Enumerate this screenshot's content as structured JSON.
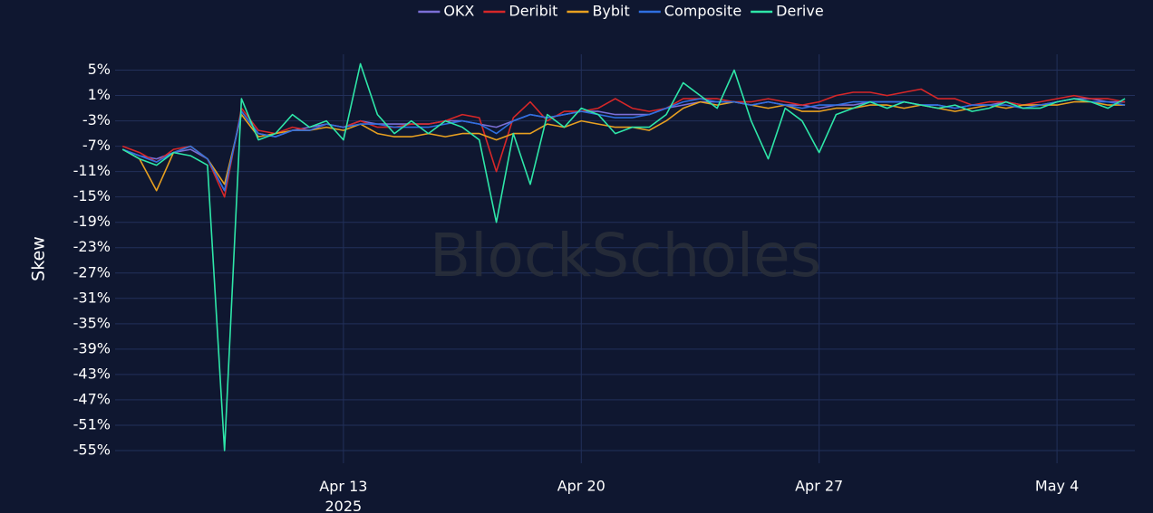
{
  "chart_data": {
    "type": "line",
    "y_label": "Skew",
    "watermark": "BlockScholes",
    "legend": "top",
    "grid": true,
    "x": [
      "2025-04-06T12:00",
      "2025-04-07T00:00",
      "2025-04-07T12:00",
      "2025-04-08T00:00",
      "2025-04-08T12:00",
      "2025-04-09T00:00",
      "2025-04-09T12:00",
      "2025-04-10T00:00",
      "2025-04-10T12:00",
      "2025-04-11T00:00",
      "2025-04-11T12:00",
      "2025-04-12T00:00",
      "2025-04-12T12:00",
      "2025-04-13T00:00",
      "2025-04-13T12:00",
      "2025-04-14T00:00",
      "2025-04-14T12:00",
      "2025-04-15T00:00",
      "2025-04-15T12:00",
      "2025-04-16T00:00",
      "2025-04-16T12:00",
      "2025-04-17T00:00",
      "2025-04-17T12:00",
      "2025-04-18T00:00",
      "2025-04-18T12:00",
      "2025-04-19T00:00",
      "2025-04-19T12:00",
      "2025-04-20T00:00",
      "2025-04-20T12:00",
      "2025-04-21T00:00",
      "2025-04-21T12:00",
      "2025-04-22T00:00",
      "2025-04-22T12:00",
      "2025-04-23T00:00",
      "2025-04-23T12:00",
      "2025-04-24T00:00",
      "2025-04-24T12:00",
      "2025-04-25T00:00",
      "2025-04-25T12:00",
      "2025-04-26T00:00",
      "2025-04-26T12:00",
      "2025-04-27T00:00",
      "2025-04-27T12:00",
      "2025-04-28T00:00",
      "2025-04-28T12:00",
      "2025-04-29T00:00",
      "2025-04-29T12:00",
      "2025-04-30T00:00",
      "2025-04-30T12:00",
      "2025-05-01T00:00",
      "2025-05-01T12:00",
      "2025-05-02T00:00",
      "2025-05-02T12:00",
      "2025-05-03T00:00",
      "2025-05-03T12:00",
      "2025-05-04T00:00",
      "2025-05-04T12:00",
      "2025-05-05T00:00",
      "2025-05-05T12:00",
      "2025-05-06T00:00"
    ],
    "xlim": [
      "2025-04-06T06:45",
      "2025-05-06T07:00"
    ],
    "xticks": [
      {
        "value": "2025-04-13T00:00",
        "label": "Apr 13\n2025"
      },
      {
        "value": "2025-04-20T00:00",
        "label": "Apr 20"
      },
      {
        "value": "2025-04-27T00:00",
        "label": "Apr 27"
      },
      {
        "value": "2025-05-04T00:00",
        "label": "May 4"
      }
    ],
    "ylim": [
      -57,
      7.5
    ],
    "yticks": [
      {
        "value": 5,
        "label": "5%"
      },
      {
        "value": 1,
        "label": "1%"
      },
      {
        "value": -3,
        "label": "-3%"
      },
      {
        "value": -7,
        "label": "-7%"
      },
      {
        "value": -11,
        "label": "-11%"
      },
      {
        "value": -15,
        "label": "-15%"
      },
      {
        "value": -19,
        "label": "-19%"
      },
      {
        "value": -23,
        "label": "-23%"
      },
      {
        "value": -27,
        "label": "-27%"
      },
      {
        "value": -31,
        "label": "-31%"
      },
      {
        "value": -35,
        "label": "-35%"
      },
      {
        "value": -39,
        "label": "-39%"
      },
      {
        "value": -43,
        "label": "-43%"
      },
      {
        "value": -47,
        "label": "-47%"
      },
      {
        "value": -51,
        "label": "-51%"
      },
      {
        "value": -55,
        "label": "-55%"
      }
    ],
    "series": [
      {
        "name": "OKX",
        "color": "#7b6fd6",
        "values": [
          -7.5,
          -8.5,
          -9,
          -8,
          -7.5,
          -9,
          -14,
          -1.5,
          -5,
          -5.5,
          -4.5,
          -4,
          -3.5,
          -4,
          -3,
          -3.5,
          -3.5,
          -3.5,
          -3.5,
          -3,
          -3,
          -3.5,
          -4,
          -3,
          -2,
          -2.5,
          -2,
          -1.5,
          -1.5,
          -2,
          -2,
          -2,
          -1,
          -0.5,
          0,
          0,
          0,
          -0.5,
          0,
          -0.5,
          -0.5,
          -1,
          -0.5,
          -0.5,
          0,
          0,
          0,
          -0.5,
          -0.5,
          -1,
          -0.5,
          -0.5,
          0,
          -0.5,
          -0.5,
          0,
          0.5,
          0.5,
          0,
          0
        ]
      },
      {
        "name": "Deribit",
        "color": "#d62728",
        "values": [
          -7,
          -8,
          -9.5,
          -7.5,
          -7,
          -9,
          -15,
          -1,
          -4.5,
          -5,
          -4,
          -4.5,
          -3.5,
          -4,
          -3,
          -4,
          -4,
          -3.5,
          -3.5,
          -3,
          -2,
          -2.5,
          -11,
          -2.5,
          0,
          -3,
          -1.5,
          -1.5,
          -1,
          0.5,
          -1,
          -1.5,
          -1,
          0.5,
          0.5,
          0.5,
          0,
          0,
          0.5,
          0,
          -0.5,
          0,
          1,
          1.5,
          1.5,
          1,
          1.5,
          2,
          0.5,
          0.5,
          -0.5,
          0,
          0,
          -0.5,
          0,
          0.5,
          1,
          0.5,
          0.5,
          0
        ]
      },
      {
        "name": "Bybit",
        "color": "#e8a020",
        "values": [
          -7.5,
          -9,
          -14,
          -8,
          -7,
          -9,
          -13,
          -2,
          -5.5,
          -5,
          -4.5,
          -4.5,
          -4,
          -4.5,
          -3.5,
          -5,
          -5.5,
          -5.5,
          -5,
          -5.5,
          -5,
          -5,
          -6,
          -5,
          -5,
          -3.5,
          -4,
          -3,
          -3.5,
          -4,
          -4,
          -4.5,
          -3,
          -1,
          0,
          -0.5,
          0,
          -0.5,
          -1,
          -0.5,
          -1.5,
          -1.5,
          -1,
          -1,
          -0.5,
          -0.5,
          -1,
          -0.5,
          -1,
          -1.5,
          -1,
          -0.5,
          -1,
          -0.5,
          -0.5,
          -0.5,
          0,
          0,
          -0.5,
          -0.5
        ]
      },
      {
        "name": "Composite",
        "color": "#2f6fe0",
        "values": [
          -7.5,
          -8.5,
          -9.5,
          -8,
          -7,
          -9,
          -14,
          -1.5,
          -5,
          -5.5,
          -4.5,
          -4.5,
          -3.5,
          -4,
          -3.5,
          -3.5,
          -4,
          -4,
          -4,
          -3.5,
          -3,
          -3.5,
          -5,
          -3,
          -2,
          -2.5,
          -2,
          -1.5,
          -2,
          -2.5,
          -2.5,
          -2,
          -1,
          0,
          0.5,
          0,
          0,
          -0.5,
          0,
          -0.5,
          -1,
          -0.5,
          -0.5,
          0,
          0,
          0,
          0,
          -0.5,
          -0.5,
          -1,
          -0.5,
          -0.5,
          -0.5,
          -1,
          -0.5,
          0,
          0.5,
          0,
          0,
          -0.5
        ]
      },
      {
        "name": "Derive",
        "color": "#2ee6a8",
        "values": [
          -7.5,
          -9,
          -10,
          -8,
          -8.5,
          -10,
          -55,
          0.5,
          -6,
          -5,
          -2,
          -4,
          -3,
          -6,
          6,
          -2,
          -5,
          -3,
          -5,
          -3,
          -4,
          -6,
          -19,
          -5,
          -13,
          -2,
          -4,
          -1,
          -2,
          -5,
          -4,
          -4,
          -2,
          3,
          1,
          -1,
          5,
          -3,
          -9,
          -1,
          -3,
          -8,
          -2,
          -1,
          0,
          -1,
          0,
          -0.5,
          -1,
          -0.5,
          -1.5,
          -1,
          0,
          -1,
          -1,
          0,
          0.5,
          0,
          -1,
          0.5
        ]
      }
    ]
  }
}
